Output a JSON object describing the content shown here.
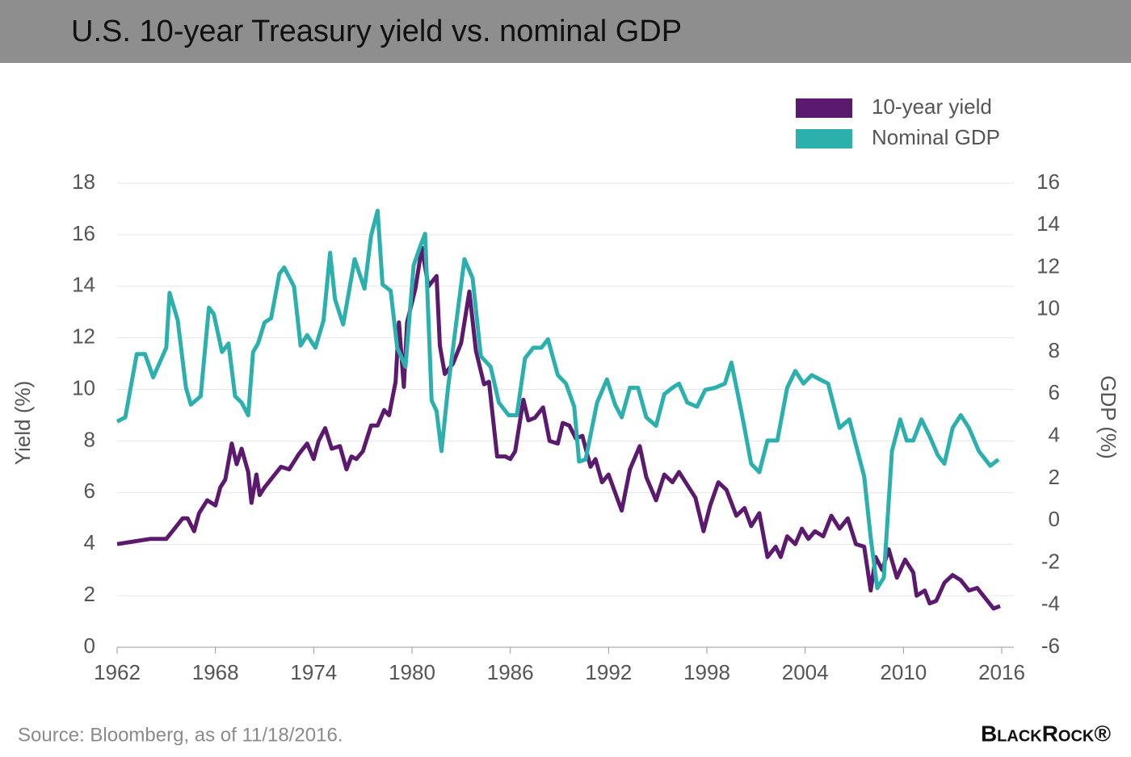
{
  "chart_data": {
    "type": "line",
    "title": "U.S. 10-year Treasury yield vs. nominal GDP",
    "y_label": "Yield (%)",
    "y2_label": "GDP (%)",
    "source": "Source: Bloomberg, as of 11/18/2016.",
    "brand": "BlackRock®",
    "legend": "top-right",
    "grid": true,
    "xlim": [
      1962,
      2016
    ],
    "xticks": [
      1962,
      1968,
      1974,
      1980,
      1986,
      1992,
      1998,
      2004,
      2010,
      2016
    ],
    "ylim": [
      0,
      18
    ],
    "yticks": [
      0,
      2,
      4,
      6,
      8,
      10,
      12,
      14,
      16,
      18
    ],
    "y2lim": [
      -6,
      16
    ],
    "y2ticks": [
      -6,
      -4,
      -2,
      0,
      2,
      4,
      6,
      8,
      10,
      12,
      14,
      16
    ],
    "series": [
      {
        "name": "10-year yield",
        "color": "#5c1a6e",
        "axis": "y",
        "x": [
          1962,
          1963,
          1964,
          1965,
          1965.5,
          1966,
          1966.3,
          1966.7,
          1967,
          1967.5,
          1968,
          1968.3,
          1968.6,
          1969,
          1969.3,
          1969.6,
          1970,
          1970.2,
          1970.5,
          1970.7,
          1971,
          1971.5,
          1972,
          1972.5,
          1973.1,
          1973.6,
          1974,
          1974.3,
          1974.7,
          1975.1,
          1975.6,
          1976,
          1976.3,
          1976.6,
          1977,
          1977.5,
          1977.9,
          1978.3,
          1978.6,
          1979,
          1979.2,
          1979.5,
          1979.7,
          1980.2,
          1980.6,
          1981,
          1981.5,
          1981.7,
          1982,
          1982.5,
          1983,
          1983.5,
          1983.9,
          1984.4,
          1984.7,
          1985.2,
          1985.7,
          1986,
          1986.3,
          1986.8,
          1987.1,
          1987.5,
          1988,
          1988.4,
          1988.9,
          1989.2,
          1989.6,
          1990,
          1990.4,
          1990.9,
          1991.2,
          1991.6,
          1992,
          1992.4,
          1992.8,
          1993.3,
          1993.9,
          1994.3,
          1994.9,
          1995.4,
          1995.9,
          1996.3,
          1996.8,
          1997.3,
          1997.8,
          1998.2,
          1998.7,
          1999.2,
          1999.8,
          2000.3,
          2000.7,
          2001.2,
          2001.7,
          2002.2,
          2002.5,
          2002.9,
          2003.4,
          2003.8,
          2004.2,
          2004.6,
          2005.1,
          2005.6,
          2006.1,
          2006.6,
          2007.1,
          2007.6,
          2008,
          2008.3,
          2008.7,
          2009.1,
          2009.6,
          2010.1,
          2010.6,
          2010.8,
          2011.3,
          2011.6,
          2012,
          2012.5,
          2013,
          2013.5,
          2014,
          2014.5,
          2015,
          2015.5,
          2015.9
        ],
        "values": [
          4.0,
          4.1,
          4.2,
          4.2,
          4.6,
          5.0,
          5.0,
          4.5,
          5.2,
          5.7,
          5.5,
          6.2,
          6.5,
          7.9,
          7.1,
          7.7,
          6.8,
          5.6,
          6.7,
          5.9,
          6.2,
          6.6,
          7.0,
          6.9,
          7.5,
          7.9,
          7.3,
          8.0,
          8.5,
          7.7,
          7.8,
          6.9,
          7.4,
          7.3,
          7.6,
          8.6,
          8.6,
          9.2,
          9.0,
          10.3,
          12.6,
          10.1,
          12.6,
          13.9,
          15.5,
          14.0,
          14.4,
          11.7,
          10.6,
          11.0,
          11.8,
          13.8,
          11.5,
          10.2,
          10.3,
          7.4,
          7.4,
          7.3,
          7.6,
          9.6,
          8.8,
          8.9,
          9.3,
          8.0,
          7.9,
          8.7,
          8.6,
          8.1,
          8.2,
          7.0,
          7.3,
          6.4,
          6.7,
          6.0,
          5.3,
          6.9,
          7.8,
          6.6,
          5.7,
          6.7,
          6.4,
          6.8,
          6.3,
          5.8,
          4.5,
          5.5,
          6.4,
          6.1,
          5.1,
          5.4,
          4.7,
          5.2,
          3.5,
          3.9,
          3.5,
          4.3,
          4.0,
          4.6,
          4.2,
          4.5,
          4.3,
          5.1,
          4.6,
          5.0,
          4.0,
          3.9,
          2.2,
          3.5,
          3.0,
          3.8,
          2.7,
          3.4,
          2.9,
          2.0,
          2.2,
          1.7,
          1.8,
          2.5,
          2.8,
          2.6,
          2.2,
          2.3,
          1.9,
          1.5,
          1.6
        ]
      },
      {
        "name": "Nominal GDP",
        "color": "#2bb0ad",
        "axis": "y2",
        "x": [
          1962.0,
          1962.5,
          1963.2,
          1963.7,
          1964.2,
          1965.0,
          1965.2,
          1965.7,
          1966.2,
          1966.5,
          1967.1,
          1967.6,
          1967.9,
          1968.4,
          1968.8,
          1969.2,
          1969.6,
          1970.0,
          1970.3,
          1970.6,
          1971.0,
          1971.4,
          1971.9,
          1972.2,
          1972.8,
          1973.2,
          1973.6,
          1974.1,
          1974.6,
          1975.0,
          1975.3,
          1975.8,
          1976.5,
          1977.1,
          1977.5,
          1977.9,
          1978.2,
          1978.7,
          1979.1,
          1979.6,
          1980.1,
          1980.5,
          1980.8,
          1981.2,
          1981.5,
          1981.8,
          1982.2,
          1982.7,
          1983.2,
          1983.7,
          1984.2,
          1984.8,
          1985.3,
          1985.9,
          1986.4,
          1986.9,
          1987.4,
          1987.9,
          1988.3,
          1988.9,
          1989.4,
          1989.9,
          1990.2,
          1990.6,
          1991.3,
          1991.9,
          1992.4,
          1992.8,
          1993.3,
          1993.8,
          1994.3,
          1994.9,
          1995.4,
          1995.9,
          1996.3,
          1996.8,
          1997.4,
          1997.9,
          1998.5,
          1999.1,
          1999.5,
          2000.2,
          2000.7,
          2001.2,
          2001.7,
          2002.3,
          2002.9,
          2003.4,
          2003.9,
          2004.4,
          2004.9,
          2005.4,
          2006.1,
          2006.7,
          2007.1,
          2007.6,
          2008.0,
          2008.4,
          2008.8,
          2009.3,
          2009.8,
          2010.2,
          2010.6,
          2011.1,
          2011.6,
          2012.1,
          2012.5,
          2013.0,
          2013.5,
          2014.0,
          2014.6,
          2015.3,
          2015.8
        ],
        "values": [
          4.7,
          4.9,
          7.9,
          7.9,
          6.8,
          8.2,
          10.8,
          9.5,
          6.3,
          5.5,
          5.9,
          10.1,
          9.8,
          8.0,
          8.4,
          5.9,
          5.6,
          5.0,
          8.0,
          8.4,
          9.4,
          9.6,
          11.7,
          12.0,
          11.1,
          8.3,
          8.8,
          8.2,
          9.5,
          12.7,
          10.5,
          9.3,
          12.4,
          11.0,
          13.5,
          14.7,
          11.2,
          10.9,
          8.2,
          7.3,
          12.1,
          13.0,
          13.6,
          5.7,
          5.2,
          3.3,
          6.3,
          9.4,
          12.4,
          11.5,
          7.8,
          7.3,
          5.6,
          5.0,
          5.0,
          7.7,
          8.2,
          8.2,
          8.6,
          6.9,
          6.5,
          5.4,
          2.8,
          2.9,
          5.6,
          6.7,
          5.5,
          4.9,
          6.3,
          6.3,
          4.9,
          4.5,
          6.0,
          6.3,
          6.5,
          5.6,
          5.4,
          6.2,
          6.3,
          6.5,
          7.5,
          4.8,
          2.7,
          2.3,
          3.8,
          3.8,
          6.3,
          7.1,
          6.5,
          6.9,
          6.7,
          6.5,
          4.4,
          4.8,
          3.6,
          2.1,
          -0.8,
          -3.2,
          -2.7,
          3.3,
          4.8,
          3.8,
          3.8,
          4.8,
          4.0,
          3.1,
          2.7,
          4.4,
          5.0,
          4.4,
          3.3,
          2.6,
          2.9
        ]
      }
    ]
  }
}
